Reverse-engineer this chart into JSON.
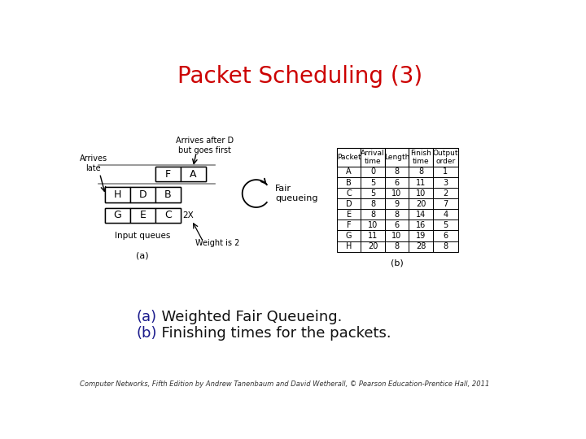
{
  "title": "Packet Scheduling (3)",
  "title_color": "#cc0000",
  "title_fontsize": 20,
  "bg_color": "#ffffff",
  "caption_a": "(a)   Weighted Fair Queueing.",
  "caption_b": "(b)   Finishing times for the packets.",
  "caption_color": "#1a1a8c",
  "caption_text_color": "#000000",
  "footer": "Computer Networks, Fifth Edition by Andrew Tanenbaum and David Wetherall, © Pearson Education-Prentice Hall, 2011",
  "table_headers": [
    "Packet",
    "Arrival\ntime",
    "Length",
    "Finish\ntime",
    "Output\norder"
  ],
  "table_data": [
    [
      "A",
      "0",
      "8",
      "8",
      "1"
    ],
    [
      "B",
      "5",
      "6",
      "11",
      "3"
    ],
    [
      "C",
      "5",
      "10",
      "10",
      "2"
    ],
    [
      "D",
      "8",
      "9",
      "20",
      "7"
    ],
    [
      "E",
      "8",
      "8",
      "14",
      "4"
    ],
    [
      "F",
      "10",
      "6",
      "16",
      "5"
    ],
    [
      "G",
      "11",
      "10",
      "19",
      "6"
    ],
    [
      "H",
      "20",
      "8",
      "28",
      "8"
    ]
  ],
  "queue_labels_top": [
    "F",
    "A"
  ],
  "queue_labels_mid": [
    "H",
    "D",
    "B"
  ],
  "queue_labels_bot": [
    "G",
    "E",
    "C"
  ],
  "arrives_late": "Arrives\nlate",
  "arrives_after": "Arrives after D\nbut goes first",
  "input_queues": "Input queues",
  "weight_is_2": "Weight is 2",
  "fair_queueing": "Fair\nqueueing",
  "label_a": "(a)",
  "label_b": "(b)"
}
